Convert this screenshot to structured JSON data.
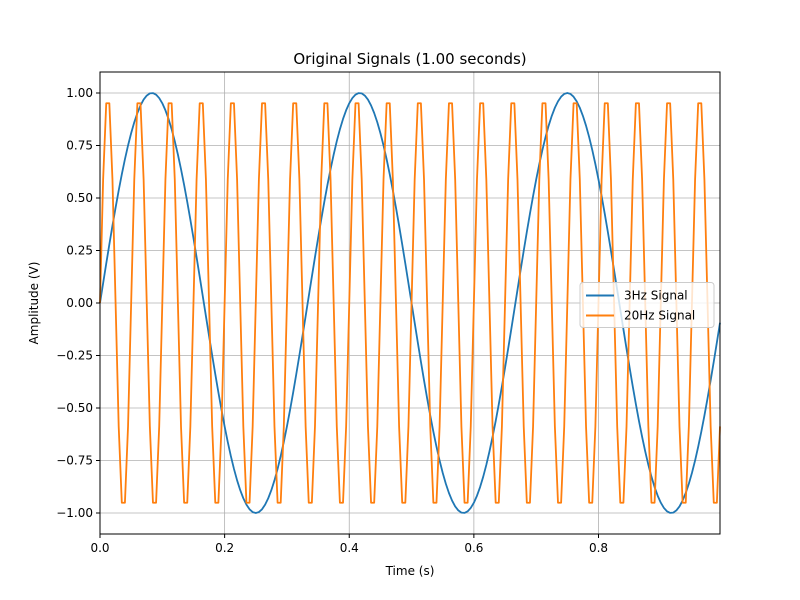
{
  "chart_data": {
    "type": "line",
    "title": "Original Signals (1.00 seconds)",
    "xlabel": "Time (s)",
    "ylabel": "Amplitude (V)",
    "xlim": [
      0,
      0.995
    ],
    "ylim": [
      -1.1,
      1.1
    ],
    "xticks": [
      0.0,
      0.2,
      0.4,
      0.6,
      0.8
    ],
    "xtick_labels": [
      "0.0",
      "0.2",
      "0.4",
      "0.6",
      "0.8"
    ],
    "yticks": [
      -1.0,
      -0.75,
      -0.5,
      -0.25,
      0.0,
      0.25,
      0.5,
      0.75,
      1.0
    ],
    "ytick_labels": [
      "−1.00",
      "−0.75",
      "−0.50",
      "−0.25",
      "0.00",
      "0.25",
      "0.50",
      "0.75",
      "1.00"
    ],
    "grid": true,
    "legend_position": "center-right",
    "series": [
      {
        "name": "3Hz Signal",
        "color": "#1f77b4",
        "function": "sine",
        "frequency_hz": 3,
        "amplitude": 1.0
      },
      {
        "name": "20Hz Signal",
        "color": "#ff7f0e",
        "function": "sine",
        "frequency_hz": 20,
        "amplitude": 1.0
      }
    ],
    "x_sample_start": 0,
    "x_sample_end": 0.995,
    "x_sample_step": 0.005
  }
}
